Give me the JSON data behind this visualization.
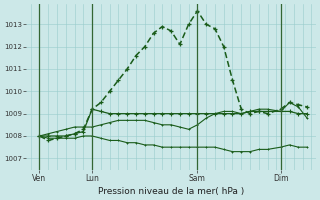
{
  "title": "Pression niveau de la mer( hPa )",
  "bg_color": "#cce8e8",
  "grid_color": "#99cccc",
  "line_color": "#1a5c1a",
  "yticks": [
    1007,
    1008,
    1009,
    1010,
    1011,
    1012,
    1013
  ],
  "ylim": [
    1006.5,
    1013.9
  ],
  "xlim": [
    -1,
    65
  ],
  "xtick_labels": [
    "Ven",
    "Lun",
    "Sam",
    "Dim"
  ],
  "xtick_positions": [
    2,
    14,
    38,
    57
  ],
  "vline_positions": [
    2,
    14,
    38,
    57
  ],
  "s1_x": [
    2,
    4,
    6,
    8,
    10,
    12,
    14,
    16,
    18,
    20,
    22,
    24,
    26,
    28,
    30,
    32,
    34,
    36,
    38,
    40,
    42,
    44,
    46,
    48,
    50,
    52,
    54,
    57,
    59,
    61,
    63
  ],
  "s1_y": [
    1008.0,
    1007.8,
    1007.9,
    1008.0,
    1008.1,
    1008.3,
    1009.2,
    1009.5,
    1010.0,
    1010.5,
    1011.0,
    1011.6,
    1012.0,
    1012.6,
    1012.9,
    1012.7,
    1012.1,
    1013.0,
    1013.6,
    1013.0,
    1012.8,
    1012.0,
    1010.5,
    1009.2,
    1009.0,
    1009.1,
    1009.0,
    1009.2,
    1009.5,
    1009.4,
    1009.3
  ],
  "s2_x": [
    2,
    4,
    6,
    8,
    10,
    12,
    14,
    16,
    18,
    20,
    22,
    24,
    26,
    28,
    30,
    32,
    34,
    36,
    38,
    40,
    42,
    44,
    46,
    48,
    50,
    52,
    54,
    57,
    59,
    61,
    63
  ],
  "s2_y": [
    1008.0,
    1008.0,
    1008.0,
    1008.0,
    1008.1,
    1008.2,
    1009.2,
    1009.1,
    1009.0,
    1009.0,
    1009.0,
    1009.0,
    1009.0,
    1009.0,
    1009.0,
    1009.0,
    1009.0,
    1009.0,
    1009.0,
    1009.0,
    1009.0,
    1009.0,
    1009.0,
    1009.0,
    1009.1,
    1009.1,
    1009.1,
    1009.1,
    1009.1,
    1009.0,
    1009.0
  ],
  "s3_x": [
    2,
    4,
    6,
    8,
    10,
    12,
    14,
    16,
    18,
    20,
    22,
    24,
    26,
    28,
    30,
    32,
    34,
    36,
    38,
    40,
    42,
    44,
    46,
    48,
    50,
    52,
    54,
    57,
    59,
    61,
    63
  ],
  "s3_y": [
    1008.0,
    1008.1,
    1008.2,
    1008.3,
    1008.4,
    1008.4,
    1008.4,
    1008.5,
    1008.6,
    1008.7,
    1008.7,
    1008.7,
    1008.7,
    1008.6,
    1008.5,
    1008.5,
    1008.4,
    1008.3,
    1008.5,
    1008.8,
    1009.0,
    1009.1,
    1009.1,
    1009.0,
    1009.1,
    1009.2,
    1009.2,
    1009.1,
    1009.5,
    1009.3,
    1008.8
  ],
  "s4_x": [
    2,
    4,
    6,
    8,
    10,
    12,
    14,
    16,
    18,
    20,
    22,
    24,
    26,
    28,
    30,
    32,
    34,
    36,
    38,
    40,
    42,
    44,
    46,
    48,
    50,
    52,
    54,
    57,
    59,
    61,
    63
  ],
  "s4_y": [
    1008.0,
    1007.9,
    1007.9,
    1007.9,
    1007.9,
    1008.0,
    1008.0,
    1007.9,
    1007.8,
    1007.8,
    1007.7,
    1007.7,
    1007.6,
    1007.6,
    1007.5,
    1007.5,
    1007.5,
    1007.5,
    1007.5,
    1007.5,
    1007.5,
    1007.4,
    1007.3,
    1007.3,
    1007.3,
    1007.4,
    1007.4,
    1007.5,
    1007.6,
    1007.5,
    1007.5
  ]
}
